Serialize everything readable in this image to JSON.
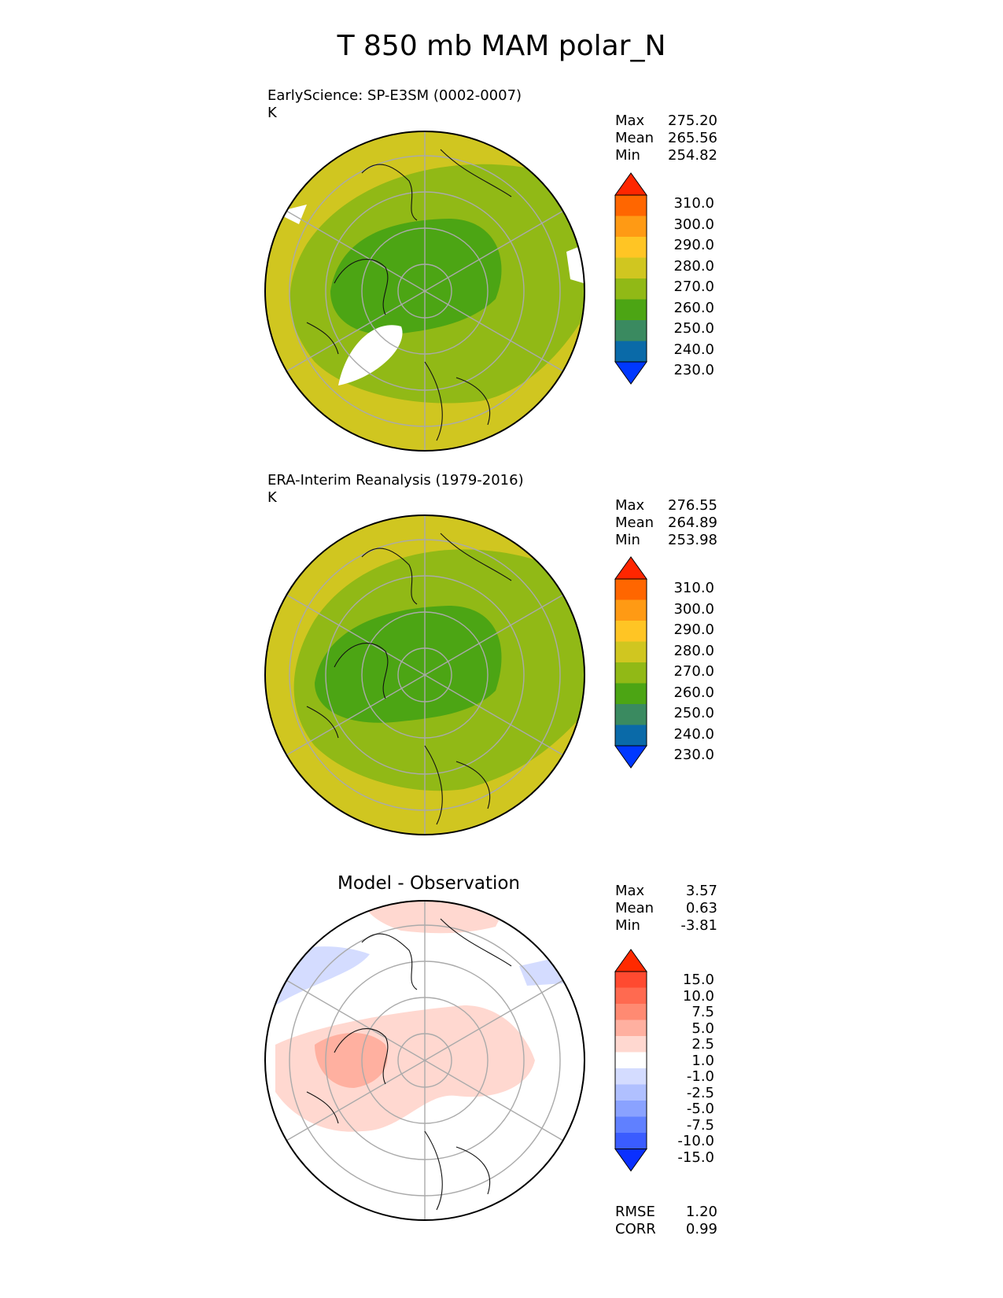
{
  "title": "T 850 mb MAM polar_N",
  "panels": [
    {
      "id": "test",
      "title": "EarlyScience: SP-E3SM (0002-0007)",
      "units": "K",
      "stats": [
        {
          "label": "Max",
          "value": "275.20"
        },
        {
          "label": "Mean",
          "value": "265.56"
        },
        {
          "label": "Min",
          "value": "254.82"
        }
      ]
    },
    {
      "id": "ref",
      "title": "ERA-Interim Reanalysis (1979-2016)",
      "units": "K",
      "stats": [
        {
          "label": "Max",
          "value": "276.55"
        },
        {
          "label": "Mean",
          "value": "264.89"
        },
        {
          "label": "Min",
          "value": "253.98"
        }
      ]
    },
    {
      "id": "diff",
      "title": "Model - Observation",
      "stats": [
        {
          "label": "Max",
          "value": "3.57"
        },
        {
          "label": "Mean",
          "value": "0.63"
        },
        {
          "label": "Min",
          "value": "-3.81"
        }
      ],
      "metrics": [
        {
          "label": "RMSE",
          "value": "1.20"
        },
        {
          "label": "CORR",
          "value": "0.99"
        }
      ]
    }
  ],
  "colorbar_abs": {
    "labels": [
      "310.0",
      "300.0",
      "290.0",
      "280.0",
      "270.0",
      "260.0",
      "250.0",
      "240.0",
      "230.0"
    ],
    "colors": [
      "#ff2600",
      "#ff6600",
      "#ff9a14",
      "#ffc524",
      "#d0c620",
      "#91b916",
      "#4ca514",
      "#3a8a60",
      "#0a6aa8",
      "#0038ff"
    ]
  },
  "colorbar_diff": {
    "labels": [
      "15.0",
      "10.0",
      "7.5",
      "5.0",
      "2.5",
      "1.0",
      "-1.0",
      "-2.5",
      "-5.0",
      "-7.5",
      "-10.0",
      "-15.0"
    ],
    "colors": [
      "#ff2a00",
      "#ff4a30",
      "#ff6a50",
      "#ff8a72",
      "#ffb0a0",
      "#ffd8d0",
      "#ffffff",
      "#d4dcff",
      "#b0c0ff",
      "#8aa2ff",
      "#6080ff",
      "#3a5cff",
      "#0a30ff"
    ]
  }
}
